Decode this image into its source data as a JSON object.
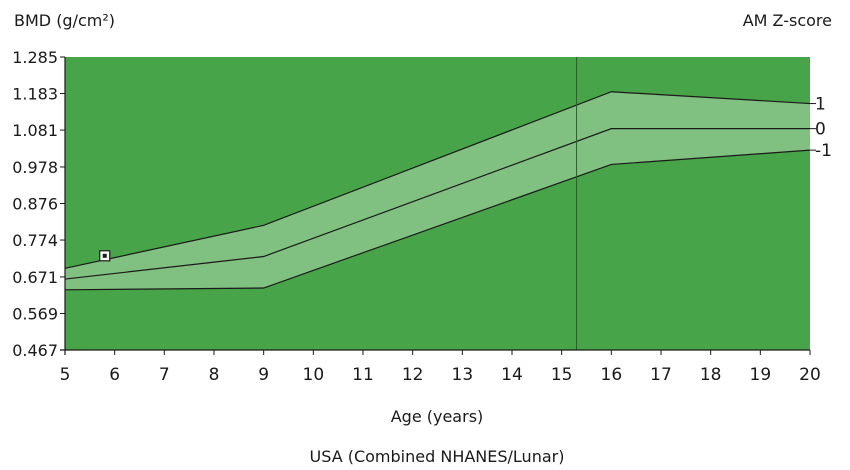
{
  "chart_data": {
    "type": "area",
    "ylabel": "BMD (g/cm²)",
    "zlabel": "AM Z-score",
    "xlabel": "Age (years)",
    "reference": "USA (Combined NHANES/Lunar)",
    "xlim": [
      5,
      20
    ],
    "ylim": [
      0.467,
      1.285
    ],
    "x_ticks": [
      "5",
      "6",
      "7",
      "8",
      "9",
      "10",
      "11",
      "12",
      "13",
      "14",
      "15",
      "16",
      "17",
      "18",
      "19",
      "20"
    ],
    "y_ticks": [
      "0.467",
      "0.569",
      "0.671",
      "0.774",
      "0.876",
      "0.978",
      "1.081",
      "1.183",
      "1.285"
    ],
    "series": [
      {
        "name": "1",
        "x": [
          5,
          9,
          16,
          20
        ],
        "values": [
          0.695,
          0.815,
          1.188,
          1.155
        ]
      },
      {
        "name": "0",
        "x": [
          5,
          9,
          16,
          20
        ],
        "values": [
          0.665,
          0.728,
          1.085,
          1.085
        ]
      },
      {
        "name": "-1",
        "x": [
          5,
          9,
          16,
          20
        ],
        "values": [
          0.635,
          0.64,
          0.985,
          1.025
        ]
      }
    ],
    "current_age_x": 15.3,
    "measurement": {
      "x": 5.8,
      "y": 0.73
    },
    "colors": {
      "background": "#48a448",
      "band": "#80c080",
      "line": "#1a1a1a"
    }
  }
}
